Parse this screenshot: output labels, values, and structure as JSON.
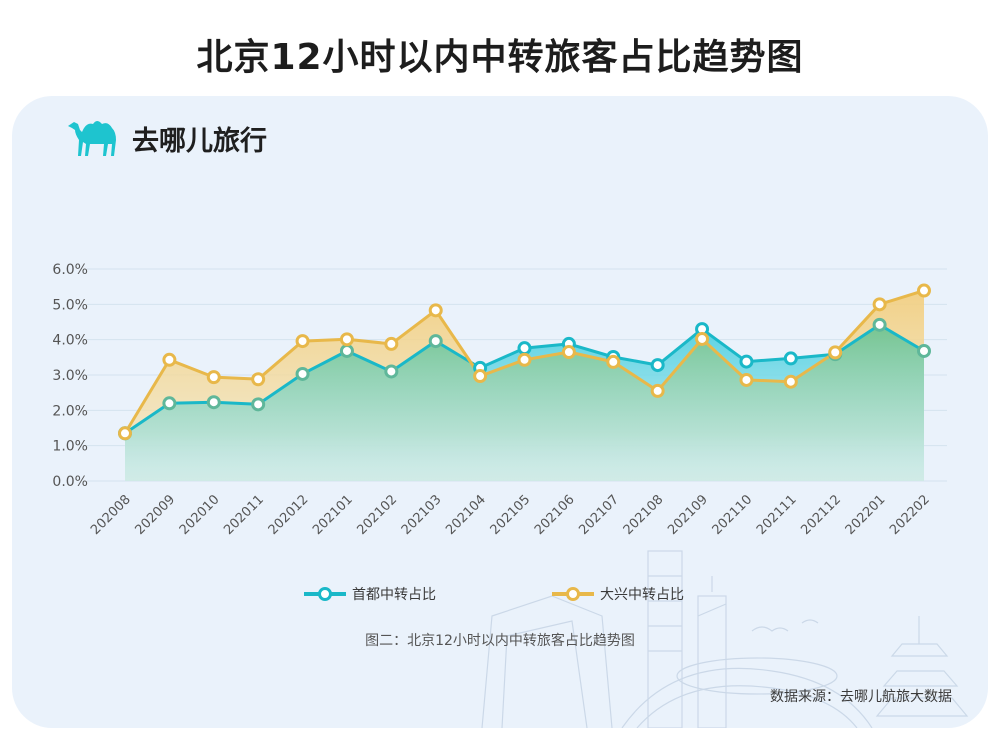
{
  "page_title": "北京12小时以内中转旅客占比趋势图",
  "brand": {
    "name": "去哪儿旅行",
    "icon": "camel-icon",
    "icon_color": "#1ec4cf"
  },
  "caption": "图二：北京12小时以内中转旅客占比趋势图",
  "source": "数据来源：去哪儿航旅大数据",
  "colors": {
    "capital": "#1ab8c8",
    "daxing": "#e8b84a",
    "background": "#eaf2fb"
  },
  "chart_data": {
    "type": "area",
    "categories": [
      "202008",
      "202009",
      "202010",
      "202011",
      "202012",
      "202101",
      "202102",
      "202103",
      "202104",
      "202105",
      "202106",
      "202107",
      "202108",
      "202109",
      "202110",
      "202111",
      "202112",
      "202201",
      "202202"
    ],
    "series": [
      {
        "name": "首都中转占比",
        "values": [
          1.35,
          2.2,
          2.23,
          2.17,
          3.03,
          3.68,
          3.1,
          3.96,
          3.2,
          3.76,
          3.88,
          3.51,
          3.28,
          4.3,
          3.38,
          3.47,
          3.59,
          4.42,
          3.68
        ]
      },
      {
        "name": "大兴中转占比",
        "values": [
          1.35,
          3.43,
          2.94,
          2.88,
          3.96,
          4.01,
          3.88,
          4.83,
          2.97,
          3.43,
          3.65,
          3.37,
          2.55,
          4.02,
          2.86,
          2.81,
          3.64,
          5.0,
          5.39
        ]
      }
    ],
    "y_tick_labels": [
      "0.0%",
      "1.0%",
      "2.0%",
      "3.0%",
      "4.0%",
      "5.0%",
      "6.0%"
    ],
    "ylim": [
      0,
      6
    ],
    "y_unit": "%",
    "grid": true,
    "legend_position": "bottom"
  }
}
